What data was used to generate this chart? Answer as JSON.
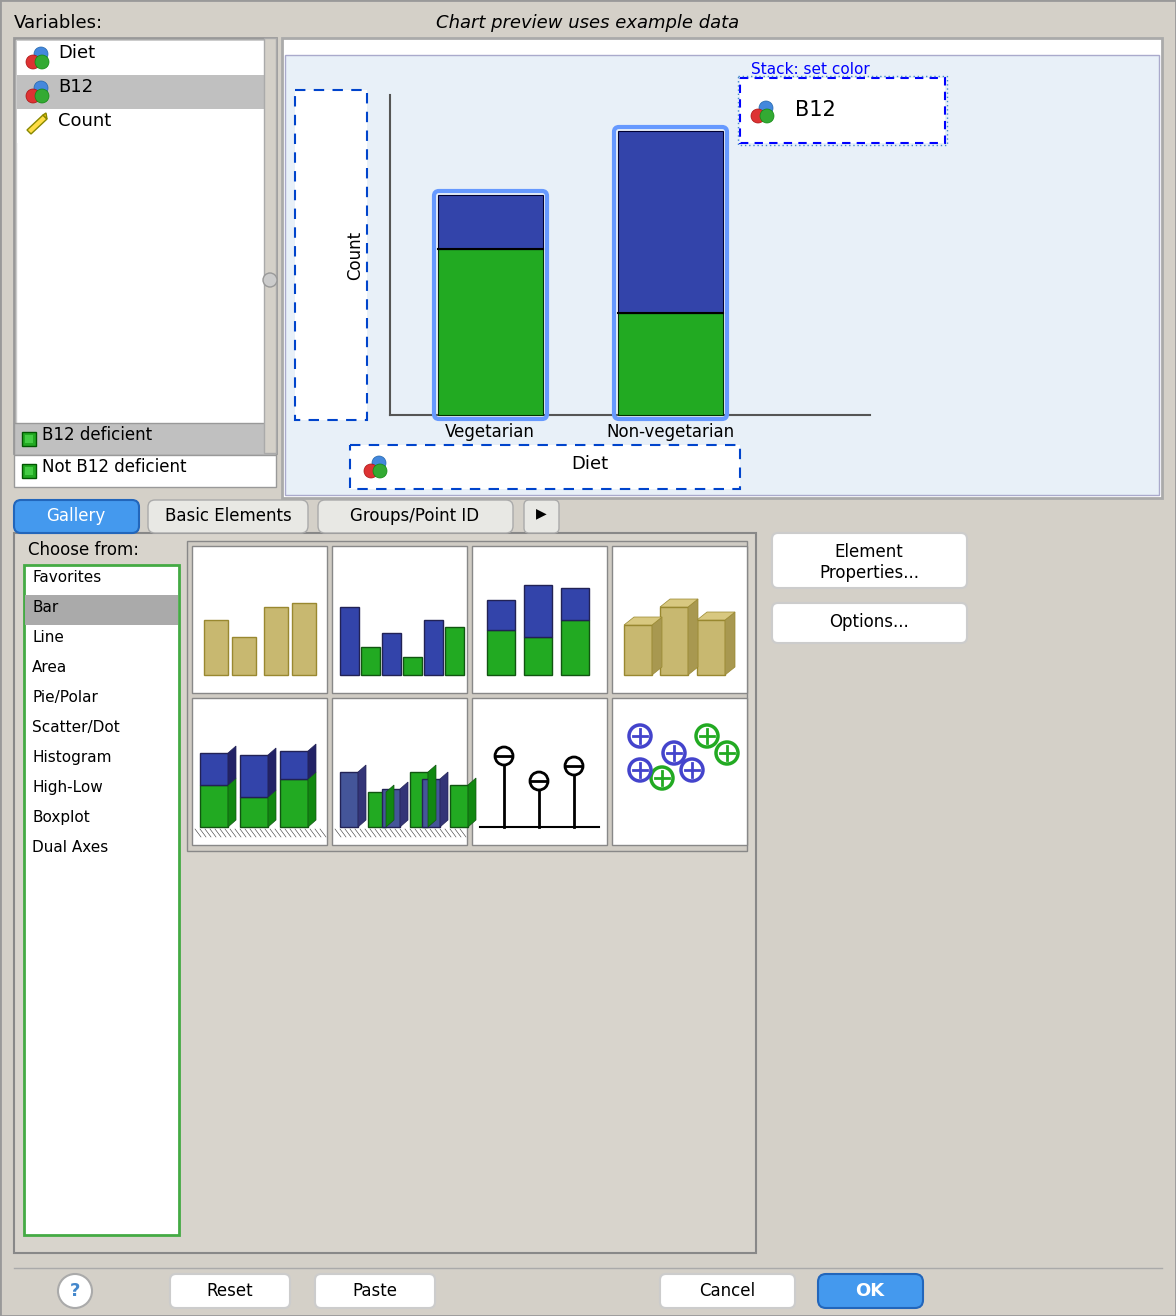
{
  "bg_color": "#d4d0c8",
  "title_text": "Chart preview uses example data",
  "variables_label": "Variables:",
  "var_list": [
    "Diet",
    "B12",
    "Count"
  ],
  "var_selected": "B12",
  "legend_items": [
    "B12 deficient",
    "Not B12 deficient"
  ],
  "bar_categories": [
    "Vegetarian",
    "Non-vegetarian"
  ],
  "green_color": "#22AA22",
  "blue_color": "#3344AA",
  "axis_ylabel": "Count",
  "stack_label": "Stack: set color",
  "stack_var": "B12",
  "drop_label": "Diet",
  "tab_labels": [
    "Gallery",
    "Basic Elements",
    "Groups/Point ID"
  ],
  "choose_from": "Choose from:",
  "left_list": [
    "Favorites",
    "Bar",
    "Line",
    "Area",
    "Pie/Polar",
    "Scatter/Dot",
    "Histogram",
    "High-Low",
    "Boxplot",
    "Dual Axes"
  ],
  "left_selected": "Bar",
  "tan_color": "#c8b870",
  "tan_dark": "#a89850",
  "tan_light": "#d8c880"
}
